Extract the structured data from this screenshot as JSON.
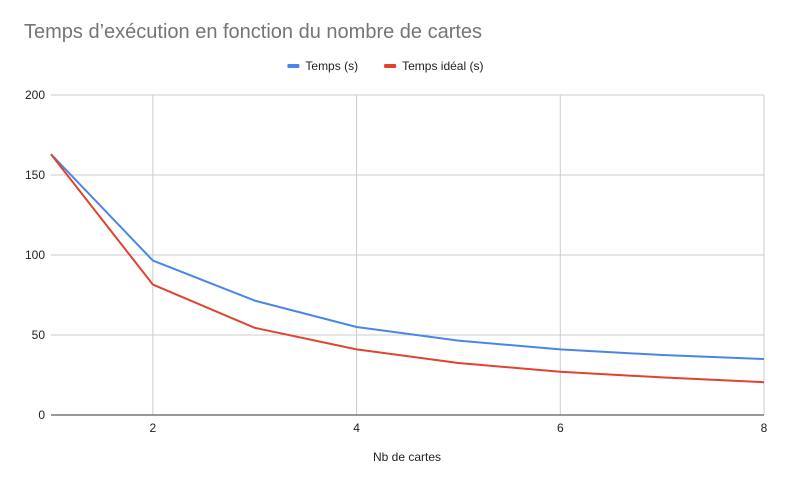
{
  "chart_data": {
    "type": "line",
    "title": "Temps d’exécution en fonction du nombre de cartes",
    "xlabel": "Nb de cartes",
    "ylabel": "",
    "x": [
      1,
      2,
      3,
      4,
      5,
      6,
      7,
      8
    ],
    "xlim": [
      1,
      8
    ],
    "ylim": [
      0,
      200
    ],
    "x_ticks": [
      "2",
      "4",
      "6",
      "8"
    ],
    "y_ticks": [
      "0",
      "50",
      "100",
      "150",
      "200"
    ],
    "grid": true,
    "legend_position": "top",
    "series": [
      {
        "name": "Temps (s)",
        "color": "#4a86e8",
        "values": [
          163,
          96.5,
          71.5,
          55,
          46.5,
          41,
          37.5,
          35
        ]
      },
      {
        "name": "Temps idéal (s)",
        "color": "#e0432f",
        "values": [
          163,
          81.5,
          54.5,
          41,
          32.5,
          27,
          23.5,
          20.5
        ]
      }
    ]
  }
}
